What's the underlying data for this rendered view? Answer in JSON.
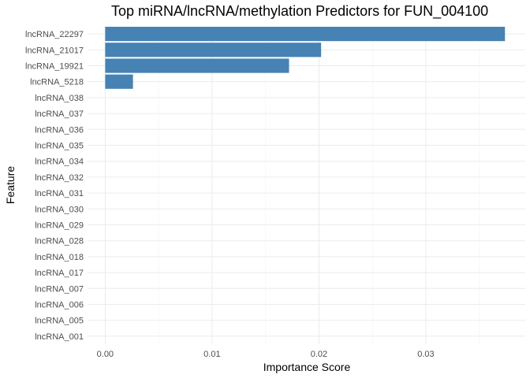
{
  "chart_data": {
    "type": "bar",
    "orientation": "horizontal",
    "title": "Top miRNA/lncRNA/methylation Predictors for FUN_004100",
    "xlabel": "Importance Score",
    "ylabel": "Feature",
    "categories": [
      "lncRNA_22297",
      "lncRNA_21017",
      "lncRNA_19921",
      "lncRNA_5218",
      "lncRNA_038",
      "lncRNA_037",
      "lncRNA_036",
      "lncRNA_035",
      "lncRNA_034",
      "lncRNA_032",
      "lncRNA_031",
      "lncRNA_030",
      "lncRNA_029",
      "lncRNA_028",
      "lncRNA_018",
      "lncRNA_017",
      "lncRNA_007",
      "lncRNA_006",
      "lncRNA_005",
      "lncRNA_001"
    ],
    "values": [
      0.0374,
      0.0202,
      0.0172,
      0.0026,
      0,
      0,
      0,
      0,
      0,
      0,
      0,
      0,
      0,
      0,
      0,
      0,
      0,
      0,
      0,
      0
    ],
    "xticks": [
      0.0,
      0.01,
      0.02,
      0.03
    ],
    "xtick_labels": [
      "0.00",
      "0.01",
      "0.02",
      "0.03"
    ],
    "xlim": [
      -0.00165,
      0.0393
    ],
    "bar_color": "#4682B4",
    "grid": true,
    "legend": "none"
  }
}
